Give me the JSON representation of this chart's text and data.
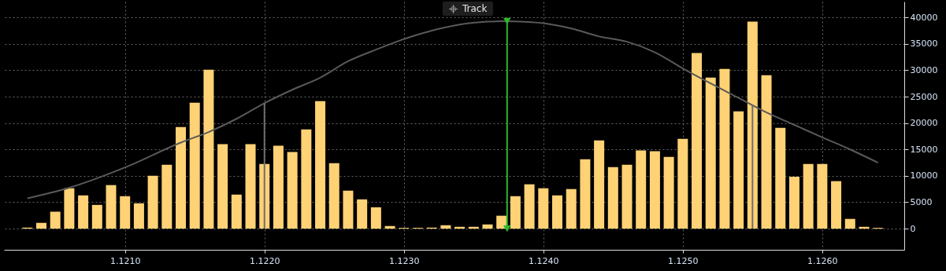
{
  "chart_data": {
    "type": "bar",
    "x": [
      1.1203,
      1.1204,
      1.1205,
      1.1206,
      1.1207,
      1.1208,
      1.1209,
      1.121,
      1.1211,
      1.1212,
      1.1213,
      1.1214,
      1.1215,
      1.1216,
      1.1217,
      1.1218,
      1.1219,
      1.122,
      1.1221,
      1.1222,
      1.1223,
      1.1224,
      1.1225,
      1.1226,
      1.1227,
      1.1228,
      1.1229,
      1.123,
      1.1231,
      1.1232,
      1.1233,
      1.1234,
      1.1235,
      1.1236,
      1.1237,
      1.1238,
      1.1239,
      1.124,
      1.1241,
      1.1242,
      1.1243,
      1.1244,
      1.1245,
      1.1246,
      1.1247,
      1.1248,
      1.1249,
      1.125,
      1.1251,
      1.1252,
      1.1253,
      1.1254,
      1.1255,
      1.1256,
      1.1257,
      1.1258,
      1.1259,
      1.126,
      1.1261,
      1.1262,
      1.1263,
      1.1264
    ],
    "series": [
      {
        "color": "#ffd275",
        "values": [
          200,
          1100,
          3200,
          7650,
          6300,
          4500,
          8250,
          6150,
          4800,
          10000,
          12100,
          19250,
          23850,
          30100,
          16000,
          6450,
          16000,
          12250,
          15700,
          14500,
          18800,
          24150,
          12400,
          7200,
          5550,
          4050,
          500,
          150,
          150,
          200,
          650,
          350,
          350,
          800,
          2450,
          6150,
          8400,
          7650,
          6300,
          7500,
          13150,
          16700,
          11650,
          12100,
          14800,
          14650,
          13600,
          17000,
          33250,
          28600,
          30250,
          22200,
          39200,
          29050,
          19100,
          9850,
          12250,
          12250,
          9000,
          1850,
          350,
          150
        ]
      },
      {
        "type": "line",
        "color": "#595959",
        "x": [
          1.1203,
          1.1206,
          1.121,
          1.1214,
          1.1216,
          1.1218,
          1.122,
          1.1222,
          1.1224,
          1.1226,
          1.1228,
          1.123,
          1.1232,
          1.1234,
          1.1236,
          1.1237,
          1.1238,
          1.124,
          1.1242,
          1.1244,
          1.1246,
          1.1248,
          1.125,
          1.1252,
          1.1254,
          1.1256,
          1.1258,
          1.126,
          1.1262,
          1.1264
        ],
        "values": [
          5750,
          7750,
          11600,
          16300,
          18300,
          20800,
          23750,
          26300,
          28600,
          31700,
          33900,
          35900,
          37500,
          38650,
          39200,
          39300,
          39250,
          38900,
          37900,
          36400,
          35400,
          33400,
          30350,
          27500,
          24750,
          22000,
          19650,
          17300,
          15000,
          12500
        ]
      },
      {
        "type": "line",
        "color": "#6e6e6e",
        "x": [
          1.122,
          1.122
        ],
        "values": [
          0,
          23750
        ]
      },
      {
        "type": "line",
        "color": "#6e6e6e",
        "x": [
          1.1255,
          1.1255
        ],
        "values": [
          0,
          23500
        ]
      },
      {
        "type": "line",
        "color": "#2db82d",
        "marker": "triangle",
        "x": [
          1.12374,
          1.12374
        ],
        "values": [
          39300,
          0
        ]
      }
    ],
    "xlim": [
      1.12016,
      1.12656
    ],
    "xticks": [
      {
        "value": 1.121,
        "label": "1.1210"
      },
      {
        "value": 1.122,
        "label": "1.1220"
      },
      {
        "value": 1.123,
        "label": "1.1230"
      },
      {
        "value": 1.124,
        "label": "1.1240"
      },
      {
        "value": 1.125,
        "label": "1.1250"
      },
      {
        "value": 1.126,
        "label": "1.1260"
      }
    ],
    "ylim": [
      -4000,
      43000
    ],
    "yticks": [
      0,
      5000,
      10000,
      15000,
      20000,
      25000,
      30000,
      35000,
      40000
    ],
    "grid": true,
    "annotations": [
      "Track"
    ]
  }
}
